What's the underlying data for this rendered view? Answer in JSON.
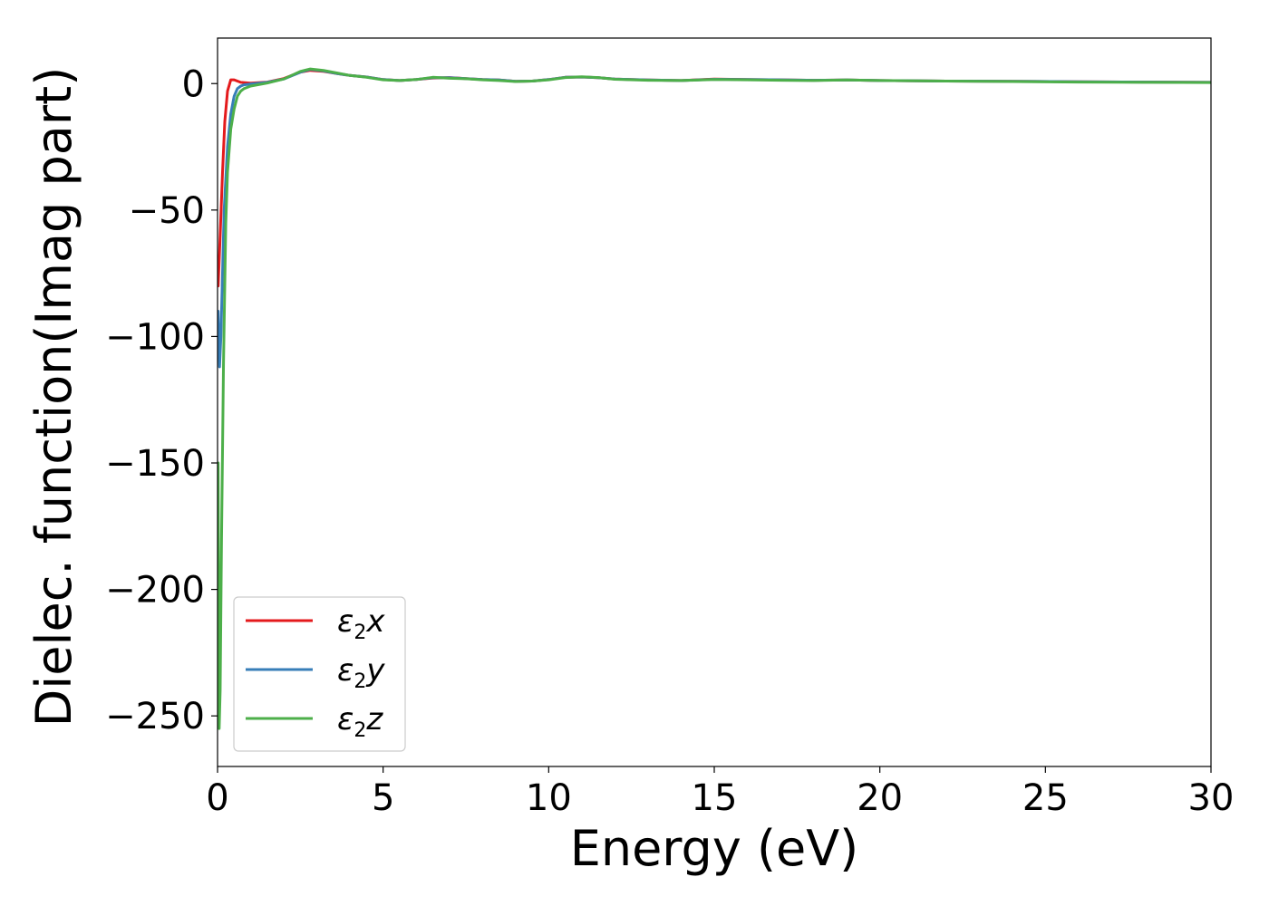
{
  "chart_data": {
    "type": "line",
    "title": "",
    "xlabel": "Energy (eV)",
    "ylabel": "Dielec. function(Imag part)",
    "xlim": [
      0,
      30
    ],
    "ylim": [
      -270,
      18
    ],
    "xticks": [
      0,
      5,
      10,
      15,
      20,
      25,
      30
    ],
    "xtick_labels": [
      "0",
      "5",
      "10",
      "15",
      "20",
      "25",
      "30"
    ],
    "yticks": [
      0,
      -50,
      -100,
      -150,
      -200,
      -250
    ],
    "ytick_labels": [
      "0",
      "−50",
      "−100",
      "−150",
      "−200",
      "−250"
    ],
    "grid": false,
    "legend": {
      "placement": "lower-left"
    },
    "series": [
      {
        "name": "x",
        "legend_symbol": "ε",
        "legend_subscript": "2",
        "color": "#e41a1c",
        "x": [
          0.02,
          0.08,
          0.15,
          0.22,
          0.3,
          0.4,
          0.5,
          0.7,
          1.0,
          1.5,
          2.0,
          2.5,
          2.8,
          3.2,
          3.6,
          4.0,
          4.5,
          5.0,
          5.5,
          6.0,
          6.5,
          7.0,
          7.5,
          8.0,
          8.5,
          9.0,
          9.5,
          10.0,
          10.5,
          11.0,
          11.5,
          12.0,
          13.0,
          14.0,
          15.0,
          16.0,
          17.0,
          18.0,
          19.0,
          20.0,
          22.0,
          24.0,
          26.0,
          28.0,
          30.0
        ],
        "y": [
          -80,
          -60,
          -35,
          -15,
          -3,
          1.5,
          1.5,
          0.5,
          0.2,
          0.6,
          2.0,
          4.5,
          5.2,
          4.8,
          4.0,
          3.2,
          2.6,
          1.6,
          1.2,
          1.6,
          2.2,
          2.4,
          2.0,
          1.6,
          1.4,
          0.9,
          1.0,
          1.6,
          2.5,
          2.6,
          2.3,
          1.8,
          1.4,
          1.2,
          1.8,
          1.6,
          1.5,
          1.3,
          1.4,
          1.2,
          1.0,
          0.9,
          0.7,
          0.6,
          0.5
        ]
      },
      {
        "name": "y",
        "legend_symbol": "ε",
        "legend_subscript": "2",
        "color": "#377eb8",
        "x": [
          0.02,
          0.06,
          0.1,
          0.15,
          0.2,
          0.3,
          0.4,
          0.5,
          0.6,
          0.7,
          0.8,
          1.0,
          1.5,
          2.0,
          2.5,
          2.8,
          3.2,
          3.6,
          4.0,
          4.5,
          5.0,
          5.5,
          6.0,
          6.5,
          7.0,
          7.5,
          8.0,
          8.5,
          9.0,
          9.5,
          10.0,
          10.5,
          11.0,
          11.5,
          12.0,
          13.0,
          14.0,
          15.0,
          16.0,
          17.0,
          18.0,
          19.0,
          20.0,
          22.0,
          24.0,
          26.0,
          28.0,
          30.0
        ],
        "y": [
          -90,
          -112,
          -100,
          -75,
          -50,
          -25,
          -12,
          -5,
          -2,
          -1,
          -0.5,
          -0.2,
          0.5,
          1.8,
          4.5,
          5.6,
          5.0,
          4.0,
          3.2,
          2.6,
          1.6,
          1.2,
          1.6,
          2.3,
          2.3,
          2.0,
          1.6,
          1.4,
          0.9,
          1.0,
          1.6,
          2.5,
          2.6,
          2.3,
          1.8,
          1.4,
          1.2,
          1.7,
          1.6,
          1.5,
          1.3,
          1.4,
          1.2,
          1.0,
          0.9,
          0.7,
          0.6,
          0.5
        ]
      },
      {
        "name": "z",
        "legend_symbol": "ε",
        "legend_subscript": "2",
        "color": "#4daf4a",
        "x": [
          0.02,
          0.05,
          0.08,
          0.12,
          0.18,
          0.25,
          0.3,
          0.4,
          0.5,
          0.6,
          0.7,
          0.8,
          1.0,
          1.5,
          2.0,
          2.5,
          2.8,
          3.2,
          3.6,
          4.0,
          4.5,
          5.0,
          5.5,
          6.0,
          6.5,
          7.0,
          7.5,
          8.0,
          8.5,
          9.0,
          9.5,
          10.0,
          10.5,
          11.0,
          11.5,
          12.0,
          13.0,
          14.0,
          15.0,
          16.0,
          17.0,
          18.0,
          19.0,
          20.0,
          22.0,
          24.0,
          26.0,
          28.0,
          30.0
        ],
        "y": [
          -150,
          -255,
          -240,
          -180,
          -110,
          -55,
          -35,
          -18,
          -10,
          -5,
          -3,
          -2,
          -1,
          0.2,
          1.8,
          4.8,
          5.8,
          5.2,
          4.2,
          3.2,
          2.5,
          1.5,
          1.2,
          1.6,
          2.5,
          2.1,
          1.9,
          1.5,
          1.2,
          0.8,
          1.0,
          1.5,
          2.4,
          2.7,
          2.4,
          1.7,
          1.3,
          1.2,
          1.6,
          1.5,
          1.3,
          1.2,
          1.4,
          1.2,
          1.0,
          0.8,
          0.6,
          0.5,
          0.4
        ]
      }
    ]
  }
}
